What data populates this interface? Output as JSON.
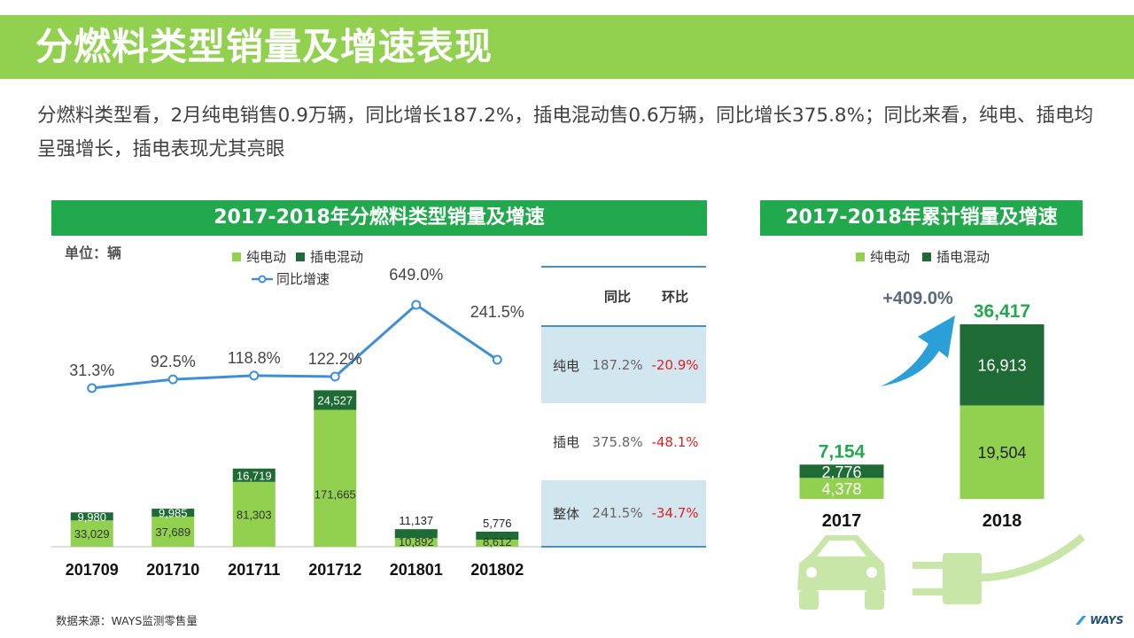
{
  "header": {
    "title": "分燃料类型销量及增速表现",
    "summary": "分燃料类型看，2月纯电销售0.9万辆，同比增长187.2%，插电混动售0.6万辆，同比增长375.8%；同比来看，纯电、插电均呈强增长，插电表现尤其亮眼"
  },
  "chart1": {
    "heading": "2017-2018年分燃料类型销量及增速",
    "unit": "单位：辆",
    "legend": {
      "ev": "纯电动",
      "phev": "插电混动",
      "growth": "同比增速"
    }
  },
  "chart2": {
    "heading": "2017-2018年累计销量及增速",
    "legend": {
      "ev": "纯电动",
      "phev": "插电混动"
    },
    "growth_label": "+409.0%"
  },
  "table": {
    "headers": [
      "",
      "同比",
      "环比"
    ],
    "rows": [
      {
        "label": "纯电",
        "yoy": "187.2%",
        "mom": "-20.9%"
      },
      {
        "label": "插电",
        "yoy": "375.8%",
        "mom": "-48.1%"
      },
      {
        "label": "整体",
        "yoy": "241.5%",
        "mom": "-34.7%"
      }
    ]
  },
  "colors": {
    "banner": "#92d050",
    "heading": "#22a94d",
    "ev": "#92d050",
    "phev": "#1e6b35",
    "line": "#3f8fd2",
    "table_band": "#d2e6f0",
    "negative": "#e02020"
  },
  "icons": [
    "arrow-up-icon",
    "car-icon",
    "plug-icon",
    "ways-logo"
  ],
  "footer": {
    "source": "数据来源：WAYS监测零售量",
    "logo": "WAYS"
  },
  "chart_data": [
    {
      "type": "bar",
      "stacked": true,
      "categories": [
        "201709",
        "201710",
        "201711",
        "201712",
        "201801",
        "201802"
      ],
      "series": [
        {
          "name": "纯电动",
          "values": [
            33029,
            37689,
            81303,
            171665,
            10892,
            8612
          ]
        },
        {
          "name": "插电混动",
          "values": [
            9980,
            9985,
            16719,
            24527,
            11137,
            5776
          ]
        }
      ],
      "line_series": {
        "name": "同比增速",
        "values": [
          31.3,
          92.5,
          118.8,
          122.2,
          649.0,
          241.5
        ],
        "unit": "%"
      },
      "unit": "单位：辆"
    },
    {
      "type": "bar",
      "stacked": true,
      "categories": [
        "2017",
        "2018"
      ],
      "series": [
        {
          "name": "纯电动",
          "values": [
            4378,
            19504
          ]
        },
        {
          "name": "插电混动",
          "values": [
            2776,
            16913
          ]
        }
      ],
      "totals": [
        7154,
        36417
      ],
      "growth": "+409.0%"
    }
  ]
}
